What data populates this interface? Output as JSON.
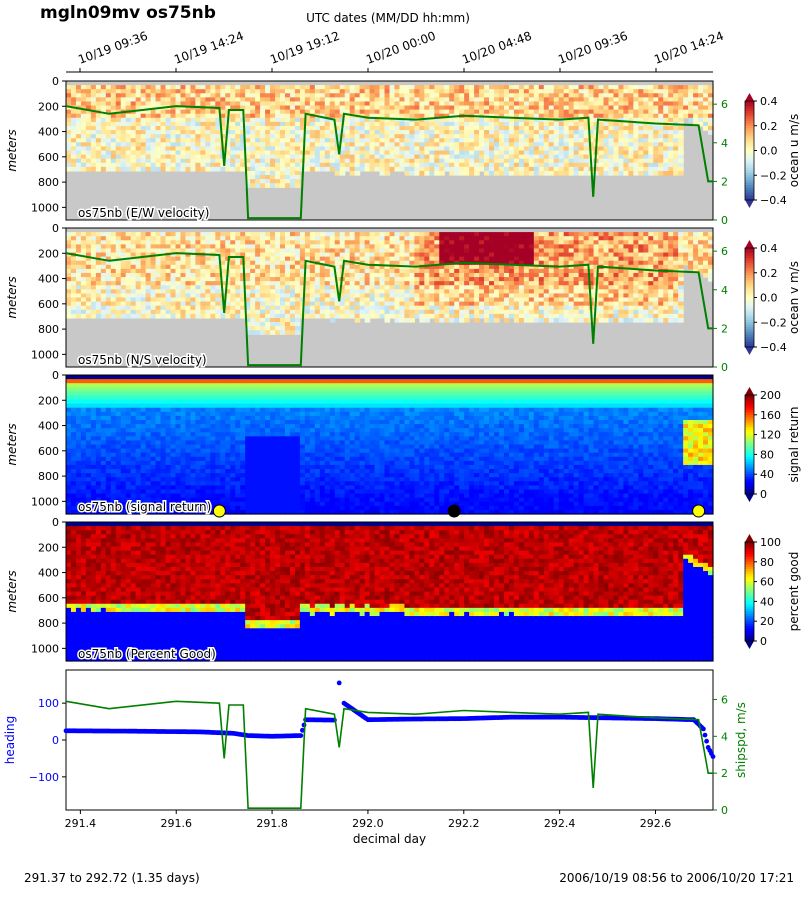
{
  "figure": {
    "title": "mgln09mv os75nb",
    "top_axis_label": "UTC dates (MM/DD hh:mm)",
    "top_ticks": [
      "10/19 09:36",
      "10/19 14:24",
      "10/19 19:12",
      "10/20 00:00",
      "10/20 04:48",
      "10/20 09:36",
      "10/20 14:24"
    ],
    "footer_left": "291.37 to 292.72 (1.35 days)",
    "footer_right": "2006/10/19 08:56 to 2006/10/20 17:21",
    "colors": {
      "shipspd": "#008000",
      "heading": "#0000ff",
      "nodata": "#c8c8c8"
    }
  },
  "chart_data": [
    {
      "type": "heatmap",
      "panel_label": "os75nb (E/W velocity)",
      "ylabel": "meters",
      "yticks": [
        0,
        200,
        400,
        600,
        800,
        1000
      ],
      "ylim": [
        1100,
        0
      ],
      "xlim": [
        291.37,
        292.72
      ],
      "colorbar": {
        "label": "ocean u m/s",
        "ticks": [
          "0.4",
          "0.2",
          "0.0",
          "−0.2",
          "−0.4"
        ],
        "range": [
          -0.4,
          0.4
        ],
        "cmap": "RdYlBu_r"
      },
      "right_axis": {
        "ticks": [
          "6",
          "4",
          "2",
          "0"
        ],
        "range": [
          0,
          7.2
        ]
      }
    },
    {
      "type": "heatmap",
      "panel_label": "os75nb (N/S velocity)",
      "ylabel": "meters",
      "yticks": [
        0,
        200,
        400,
        600,
        800,
        1000
      ],
      "ylim": [
        1100,
        0
      ],
      "xlim": [
        291.37,
        292.72
      ],
      "colorbar": {
        "label": "ocean v m/s",
        "ticks": [
          "0.4",
          "0.2",
          "0.0",
          "−0.2",
          "−0.4"
        ],
        "range": [
          -0.4,
          0.4
        ],
        "cmap": "RdYlBu_r"
      },
      "right_axis": {
        "ticks": [
          "6",
          "4",
          "2",
          "0"
        ],
        "range": [
          0,
          7.2
        ]
      }
    },
    {
      "type": "heatmap",
      "panel_label": "os75nb (signal return)",
      "ylabel": "meters",
      "yticks": [
        0,
        200,
        400,
        600,
        800,
        1000
      ],
      "ylim": [
        1100,
        0
      ],
      "xlim": [
        291.37,
        292.72
      ],
      "colorbar": {
        "label": "signal return",
        "ticks": [
          "200",
          "160",
          "120",
          "80",
          "40",
          "0"
        ],
        "range": [
          0,
          200
        ],
        "cmap": "jet"
      },
      "markers": [
        {
          "x": 291.69,
          "color": "#ffff00"
        },
        {
          "x": 292.18,
          "color": "#000000"
        },
        {
          "x": 292.69,
          "color": "#ffff00"
        }
      ]
    },
    {
      "type": "heatmap",
      "panel_label": "os75nb (Percent Good)",
      "ylabel": "meters",
      "yticks": [
        0,
        200,
        400,
        600,
        800,
        1000
      ],
      "ylim": [
        1100,
        0
      ],
      "xlim": [
        291.37,
        292.72
      ],
      "colorbar": {
        "label": "percent good",
        "ticks": [
          "100",
          "80",
          "60",
          "40",
          "20",
          "0"
        ],
        "range": [
          0,
          100
        ],
        "cmap": "jet"
      }
    },
    {
      "type": "line",
      "ylabel_left": "heading",
      "ylabel_right": "shipspd, m/s",
      "xlabel": "decimal day",
      "xticks": [
        "291.4",
        "291.6",
        "291.8",
        "292.0",
        "292.2",
        "292.4",
        "292.6"
      ],
      "xlim": [
        291.37,
        292.72
      ],
      "yticks_left": [
        "100",
        "0",
        "−100"
      ],
      "ylim_left": [
        -190,
        190
      ],
      "yticks_right": [
        "6",
        "4",
        "2",
        "0"
      ],
      "ylim_right": [
        0,
        7.6
      ],
      "series": [
        {
          "axis": "left",
          "x": [
            291.37,
            291.5,
            291.65,
            291.72,
            291.75,
            291.8,
            291.86,
            291.87,
            291.93,
            291.94,
            291.95,
            292.0,
            292.1,
            292.2,
            292.3,
            292.4,
            292.5,
            292.6,
            292.68,
            292.7,
            292.71,
            292.72
          ],
          "values": [
            25,
            24,
            22,
            18,
            12,
            10,
            12,
            55,
            54,
            155,
            100,
            55,
            57,
            58,
            62,
            62,
            60,
            58,
            55,
            30,
            -20,
            -45
          ]
        },
        {
          "axis": "right",
          "x": [
            291.37,
            291.46,
            291.6,
            291.69,
            291.7,
            291.71,
            291.74,
            291.75,
            291.86,
            291.87,
            291.93,
            291.94,
            291.95,
            292.0,
            292.1,
            292.2,
            292.3,
            292.4,
            292.46,
            292.47,
            292.48,
            292.6,
            292.69,
            292.71,
            292.72
          ],
          "values": [
            5.9,
            5.5,
            5.9,
            5.8,
            2.8,
            5.7,
            5.7,
            0.1,
            0.1,
            5.5,
            5.2,
            3.4,
            5.5,
            5.3,
            5.2,
            5.4,
            5.3,
            5.2,
            5.3,
            1.2,
            5.2,
            5.0,
            4.9,
            2.0,
            2.0
          ]
        }
      ]
    }
  ]
}
